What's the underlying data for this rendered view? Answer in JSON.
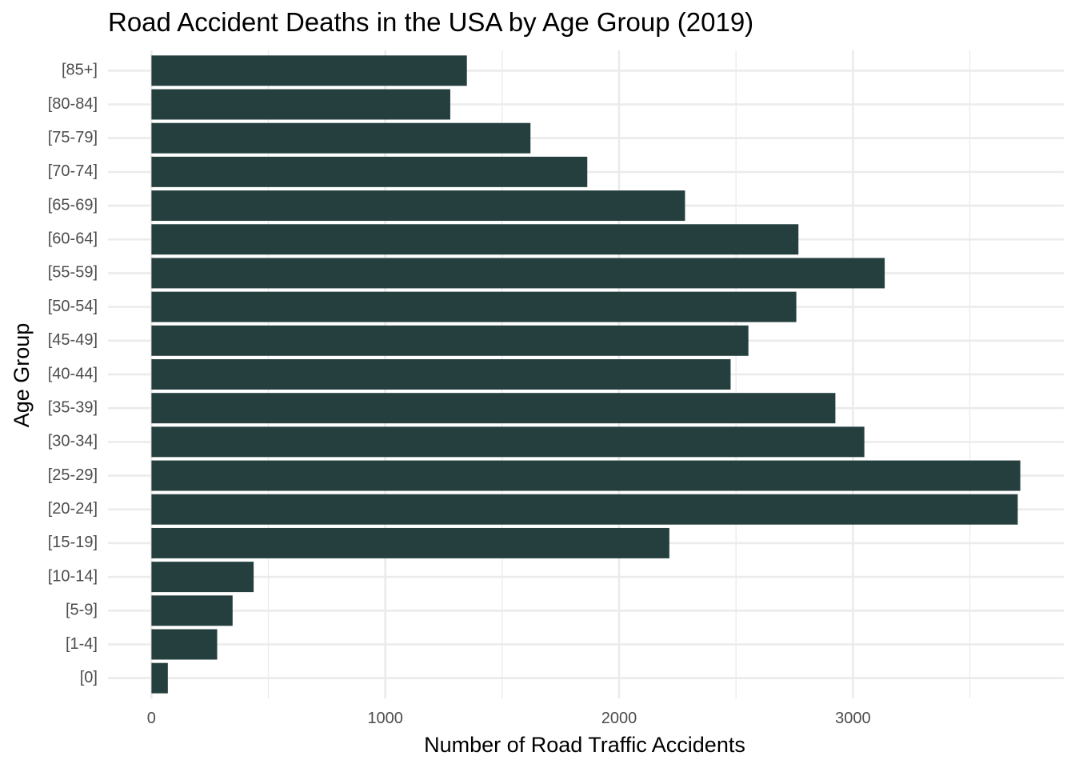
{
  "chart_data": {
    "type": "bar",
    "orientation": "horizontal",
    "title": "Road Accident Deaths in the USA by Age Group (2019)",
    "xlabel": "Number of Road Traffic Accidents",
    "ylabel": "Age Group",
    "categories": [
      "[0]",
      "[1-4]",
      "[5-9]",
      "[10-14]",
      "[15-19]",
      "[20-24]",
      "[25-29]",
      "[30-34]",
      "[35-39]",
      "[40-44]",
      "[45-49]",
      "[50-54]",
      "[55-59]",
      "[60-64]",
      "[65-69]",
      "[70-74]",
      "[75-79]",
      "[80-84]",
      "[85+]"
    ],
    "values": [
      70,
      281,
      347,
      437,
      2215,
      3705,
      3716,
      3049,
      2925,
      2477,
      2553,
      2758,
      3136,
      2767,
      2282,
      1864,
      1621,
      1278,
      1349
    ],
    "xlim": [
      -186,
      3902
    ],
    "xticks": [
      0,
      1000,
      2000,
      3000
    ],
    "xtick_labels": [
      "0",
      "1000",
      "2000",
      "3000"
    ],
    "grid": true,
    "bar_color": "#253f3f",
    "theme": "minimal"
  }
}
